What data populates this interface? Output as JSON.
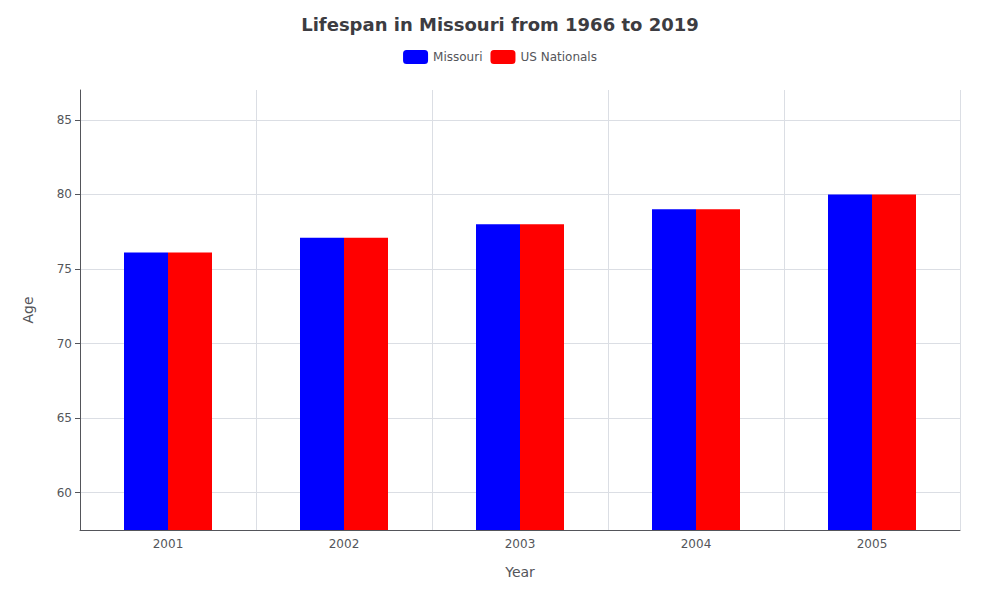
{
  "chart_data": {
    "type": "bar",
    "title": "Lifespan in Missouri from 1966 to 2019",
    "x_label": "Year",
    "y_label": "Age",
    "categories": [
      "2001",
      "2002",
      "2003",
      "2004",
      "2005"
    ],
    "series": [
      {
        "name": "Missouri",
        "color": "#0000ff",
        "values": [
          76.1,
          77.1,
          78.0,
          79.0,
          80.0
        ]
      },
      {
        "name": "US Nationals",
        "color": "#ff0000",
        "values": [
          76.1,
          77.1,
          78.0,
          79.0,
          80.0
        ]
      }
    ],
    "ylim": [
      57.5,
      87
    ],
    "yticks": [
      60,
      65,
      70,
      75,
      80,
      85
    ],
    "grid": true,
    "legend": "top"
  }
}
